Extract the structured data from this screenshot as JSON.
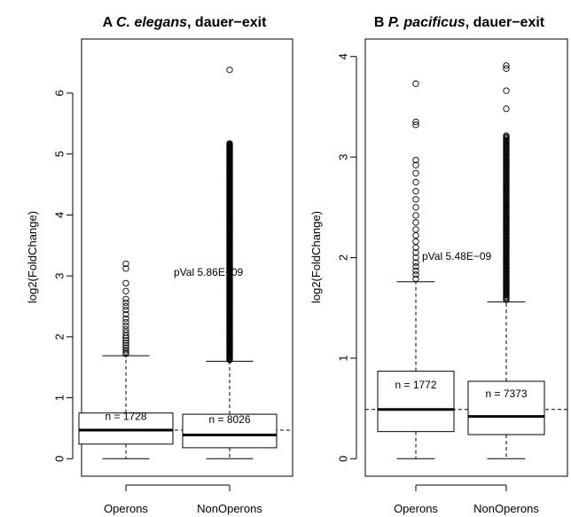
{
  "chart_data": [
    {
      "type": "box",
      "panel_letter": "A",
      "title_species": "C. elegans",
      "title_rest": ", dauer−exit",
      "ylabel": "log2(FoldChange)",
      "ylim": [
        0,
        6.6
      ],
      "yticks": [
        0,
        1,
        2,
        3,
        4,
        5,
        6
      ],
      "categories": [
        "Operons",
        "NonOperons"
      ],
      "boxes": [
        {
          "name": "Operons",
          "whisker_low": 0.0,
          "q1": 0.24,
          "median": 0.47,
          "q3": 0.75,
          "whisker_high": 1.69,
          "outliers": [
            1.72,
            1.75,
            1.78,
            1.82,
            1.86,
            1.9,
            1.94,
            1.98,
            2.02,
            2.07,
            2.12,
            2.18,
            2.24,
            2.3,
            2.37,
            2.44,
            2.5,
            2.56,
            2.62,
            2.75,
            2.88,
            3.12,
            3.2
          ],
          "n_label": "n = 1728"
        },
        {
          "name": "NonOperons",
          "whisker_low": 0.0,
          "q1": 0.18,
          "median": 0.39,
          "q3": 0.73,
          "whisker_high": 1.6,
          "outliers_dense_range": [
            1.62,
            5.18
          ],
          "outliers": [
            6.38
          ],
          "n_label": "n = 8026"
        }
      ],
      "reference_line": 0.47,
      "pval_label": "pVal 5.86E−09"
    },
    {
      "type": "box",
      "panel_letter": "B",
      "title_species": "P. pacificus",
      "title_rest": ", dauer−exit",
      "ylabel": "log2(FoldChange)",
      "ylim": [
        0,
        4.0
      ],
      "yticks": [
        0,
        1,
        2,
        3,
        4
      ],
      "categories": [
        "Operons",
        "NonOperons"
      ],
      "boxes": [
        {
          "name": "Operons",
          "whisker_low": 0.0,
          "q1": 0.27,
          "median": 0.49,
          "q3": 0.87,
          "whisker_high": 1.76,
          "outliers": [
            1.79,
            1.83,
            1.87,
            1.91,
            1.95,
            2.0,
            2.05,
            2.1,
            2.16,
            2.22,
            2.28,
            2.35,
            2.42,
            2.5,
            2.58,
            2.66,
            2.75,
            2.84,
            2.92,
            2.97,
            3.32,
            3.35,
            3.73
          ],
          "n_label": "n = 1772"
        },
        {
          "name": "NonOperons",
          "whisker_low": 0.0,
          "q1": 0.24,
          "median": 0.42,
          "q3": 0.77,
          "whisker_high": 1.56,
          "outliers_dense_range": [
            1.58,
            3.22
          ],
          "outliers": [
            3.48,
            3.66,
            3.88,
            3.91
          ],
          "n_label": "n = 7373"
        }
      ],
      "reference_line": 0.49,
      "pval_label": "pVal 5.48E−09"
    }
  ]
}
